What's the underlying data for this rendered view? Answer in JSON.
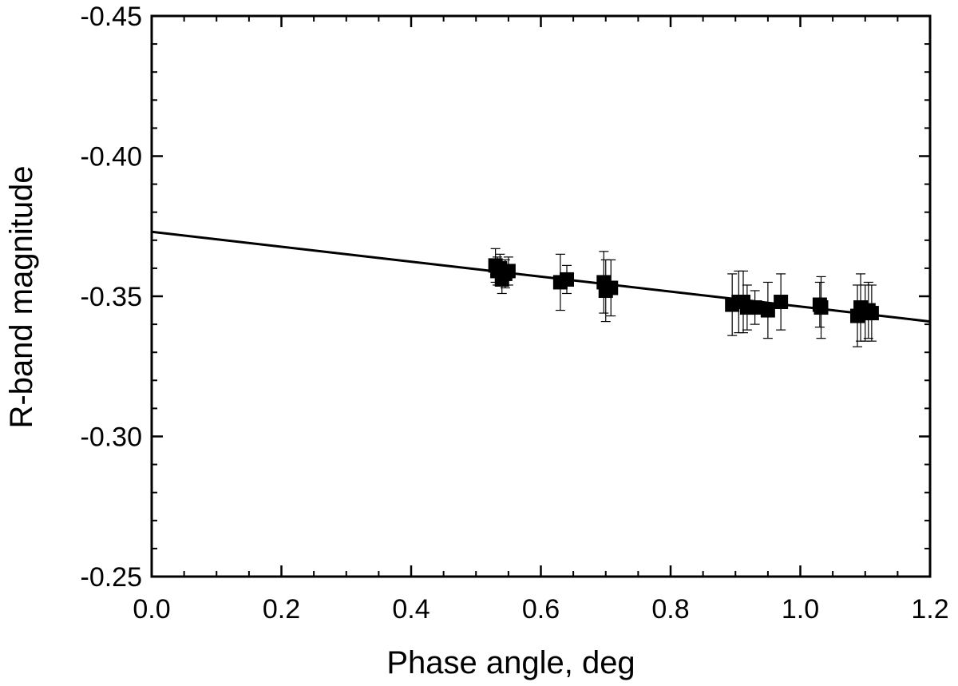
{
  "chart_data": {
    "type": "scatter",
    "title": "",
    "xlabel": "Phase angle, deg",
    "ylabel": "R-band magnitude",
    "xlim": [
      0.0,
      1.2
    ],
    "ylim": [
      -0.25,
      -0.45
    ],
    "y_axis_inverted": true,
    "x_ticks": [
      0.0,
      0.2,
      0.4,
      0.6,
      0.8,
      1.0,
      1.2
    ],
    "x_tick_labels": [
      "0.0",
      "0.2",
      "0.4",
      "0.6",
      "0.8",
      "1.0",
      "1.2"
    ],
    "y_ticks": [
      -0.45,
      -0.4,
      -0.35,
      -0.3,
      -0.25
    ],
    "y_tick_labels": [
      "-0.45",
      "-0.40",
      "-0.35",
      "-0.30",
      "-0.25"
    ],
    "minor_ticks": {
      "x_step": 0.05,
      "y_step": 0.01
    },
    "grid": false,
    "legend": "none",
    "points": [
      {
        "x": 0.53,
        "y": -0.361,
        "err": 0.006
      },
      {
        "x": 0.533,
        "y": -0.359,
        "err": 0.005
      },
      {
        "x": 0.537,
        "y": -0.36,
        "err": 0.005
      },
      {
        "x": 0.54,
        "y": -0.356,
        "err": 0.005
      },
      {
        "x": 0.545,
        "y": -0.358,
        "err": 0.005
      },
      {
        "x": 0.55,
        "y": -0.359,
        "err": 0.005
      },
      {
        "x": 0.63,
        "y": -0.355,
        "err": 0.01
      },
      {
        "x": 0.64,
        "y": -0.356,
        "err": 0.005
      },
      {
        "x": 0.697,
        "y": -0.355,
        "err": 0.011
      },
      {
        "x": 0.7,
        "y": -0.352,
        "err": 0.011
      },
      {
        "x": 0.708,
        "y": -0.353,
        "err": 0.01
      },
      {
        "x": 0.895,
        "y": -0.347,
        "err": 0.011
      },
      {
        "x": 0.905,
        "y": -0.348,
        "err": 0.011
      },
      {
        "x": 0.912,
        "y": -0.348,
        "err": 0.011
      },
      {
        "x": 0.918,
        "y": -0.346,
        "err": 0.008
      },
      {
        "x": 0.93,
        "y": -0.346,
        "err": 0.006
      },
      {
        "x": 0.95,
        "y": -0.345,
        "err": 0.01
      },
      {
        "x": 0.97,
        "y": -0.348,
        "err": 0.01
      },
      {
        "x": 1.03,
        "y": -0.347,
        "err": 0.008
      },
      {
        "x": 1.032,
        "y": -0.346,
        "err": 0.011
      },
      {
        "x": 1.088,
        "y": -0.343,
        "err": 0.011
      },
      {
        "x": 1.093,
        "y": -0.346,
        "err": 0.012
      },
      {
        "x": 1.1,
        "y": -0.344,
        "err": 0.01
      },
      {
        "x": 1.105,
        "y": -0.345,
        "err": 0.01
      },
      {
        "x": 1.11,
        "y": -0.344,
        "err": 0.01
      }
    ],
    "fit_line": {
      "x": [
        0.0,
        1.2
      ],
      "y": [
        -0.373,
        -0.341
      ]
    },
    "colors": {
      "markers": "#000000",
      "line": "#000000",
      "axes": "#000000"
    }
  }
}
